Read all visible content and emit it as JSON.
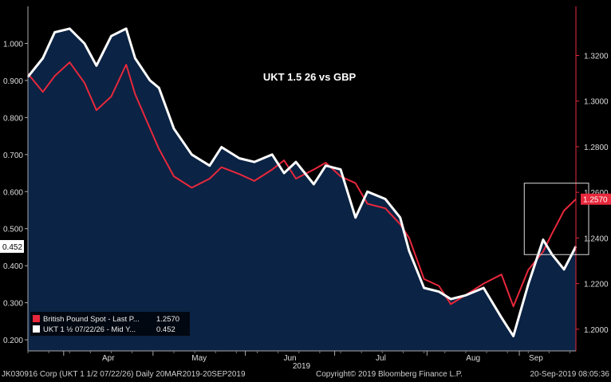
{
  "chart_data": {
    "type": "line",
    "title": "UKT 1.5 26 vs GBP",
    "x_axis": {
      "year_label": "2019",
      "months": [
        "Apr",
        "May",
        "Jun",
        "Jul",
        "Aug",
        "Sep"
      ],
      "range": [
        "2019-03-20",
        "2019-09-20"
      ]
    },
    "y_left": {
      "ticks": [
        "1.000",
        "0.900",
        "0.800",
        "0.700",
        "0.600",
        "0.500",
        "0.400",
        "0.300",
        "0.200"
      ],
      "range": [
        0.17,
        1.1
      ]
    },
    "y_right": {
      "ticks": [
        "1.3200",
        "1.3000",
        "1.2800",
        "1.2600",
        "1.2400",
        "1.2200",
        "1.2000"
      ],
      "range": [
        1.1905,
        1.3415
      ]
    },
    "series": [
      {
        "name": "British Pound Spot - Last P...",
        "legend_value": "1.2570",
        "last_label": "1.2570",
        "axis": "right",
        "color": "#e8283c",
        "x": [
          "2019-03-20",
          "2019-03-25",
          "2019-03-29",
          "2019-04-03",
          "2019-04-08",
          "2019-04-12",
          "2019-04-17",
          "2019-04-22",
          "2019-04-25",
          "2019-04-30",
          "2019-05-03",
          "2019-05-08",
          "2019-05-14",
          "2019-05-20",
          "2019-05-24",
          "2019-05-30",
          "2019-06-04",
          "2019-06-10",
          "2019-06-14",
          "2019-06-18",
          "2019-06-24",
          "2019-06-28",
          "2019-07-03",
          "2019-07-08",
          "2019-07-12",
          "2019-07-18",
          "2019-07-23",
          "2019-07-26",
          "2019-07-31",
          "2019-08-05",
          "2019-08-09",
          "2019-08-14",
          "2019-08-20",
          "2019-08-26",
          "2019-08-30",
          "2019-09-04",
          "2019-09-09",
          "2019-09-12",
          "2019-09-16",
          "2019-09-20"
        ],
        "values": [
          1.312,
          1.304,
          1.311,
          1.317,
          1.308,
          1.296,
          1.302,
          1.316,
          1.303,
          1.288,
          1.279,
          1.267,
          1.262,
          1.266,
          1.271,
          1.268,
          1.265,
          1.27,
          1.274,
          1.266,
          1.27,
          1.273,
          1.267,
          1.264,
          1.255,
          1.253,
          1.246,
          1.24,
          1.222,
          1.219,
          1.211,
          1.215,
          1.22,
          1.224,
          1.21,
          1.226,
          1.234,
          1.242,
          1.252,
          1.257
        ]
      },
      {
        "name": "UKT 1 ½ 07/22/26 - Mid Y...",
        "legend_value": "0.452",
        "last_label": "0.452",
        "axis": "left",
        "color": "#ffffff",
        "x": [
          "2019-03-20",
          "2019-03-25",
          "2019-03-29",
          "2019-04-03",
          "2019-04-08",
          "2019-04-12",
          "2019-04-17",
          "2019-04-22",
          "2019-04-25",
          "2019-04-30",
          "2019-05-03",
          "2019-05-08",
          "2019-05-14",
          "2019-05-20",
          "2019-05-24",
          "2019-05-30",
          "2019-06-04",
          "2019-06-10",
          "2019-06-14",
          "2019-06-18",
          "2019-06-24",
          "2019-06-28",
          "2019-07-03",
          "2019-07-08",
          "2019-07-12",
          "2019-07-18",
          "2019-07-23",
          "2019-07-26",
          "2019-07-31",
          "2019-08-05",
          "2019-08-09",
          "2019-08-14",
          "2019-08-20",
          "2019-08-26",
          "2019-08-30",
          "2019-09-04",
          "2019-09-09",
          "2019-09-12",
          "2019-09-16",
          "2019-09-20"
        ],
        "values": [
          0.91,
          0.96,
          1.03,
          1.04,
          1.0,
          0.94,
          1.02,
          1.04,
          0.96,
          0.9,
          0.88,
          0.77,
          0.7,
          0.67,
          0.72,
          0.69,
          0.68,
          0.7,
          0.65,
          0.68,
          0.62,
          0.67,
          0.66,
          0.53,
          0.6,
          0.58,
          0.53,
          0.44,
          0.34,
          0.33,
          0.31,
          0.32,
          0.34,
          0.26,
          0.21,
          0.35,
          0.47,
          0.43,
          0.39,
          0.452
        ]
      }
    ],
    "legend": "bottom-left",
    "annotation": "highlight-box-around-recent-september-values"
  },
  "footer": {
    "left": "JK030916 Corp (UKT 1 1/2 07/22/26)  Daily 20MAR2019-20SEP2019",
    "middle": "Copyright© 2019 Bloomberg Finance L.P.",
    "right": "20-Sep-2019 08:05:36"
  },
  "colors": {
    "background": "#000000",
    "area_fill": "#0b2344",
    "red": "#e8283c",
    "white": "#ffffff",
    "axis": "#aaaaaa"
  }
}
